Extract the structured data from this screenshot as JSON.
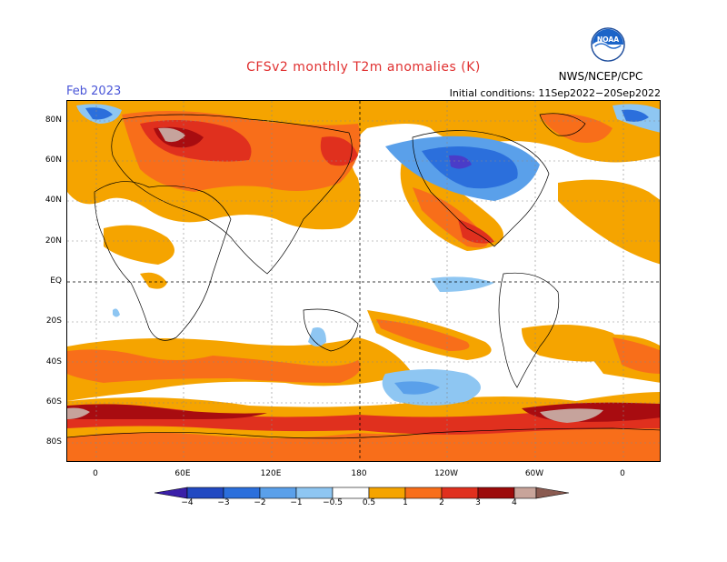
{
  "header": {
    "title": "CFSv2 monthly T2m anomalies (K)",
    "month": "Feb 2023",
    "initial_conditions": "Initial conditions: 11Sep2022−20Sep2022",
    "agency": "NWS/NCEP/CPC",
    "logo_text": "NOAA"
  },
  "axes": {
    "lat_labels": [
      "80N",
      "60N",
      "40N",
      "20N",
      "EQ",
      "20S",
      "40S",
      "60S",
      "80S"
    ],
    "lon_labels": [
      "0",
      "60E",
      "120E",
      "180",
      "120W",
      "60W",
      "0"
    ]
  },
  "colorbar": {
    "labels": [
      "−4",
      "−3",
      "−2",
      "−1",
      "−0.5",
      "0.5",
      "1",
      "2",
      "3",
      "4"
    ],
    "colors": [
      "#3a1fa8",
      "#2149c2",
      "#2b6fdc",
      "#5aa0ea",
      "#8ec6f2",
      "#ffffff",
      "#f5a400",
      "#f86e1a",
      "#e0301e",
      "#9c0a0a",
      "#c8a49a",
      "#8a5a50"
    ]
  },
  "colors": {
    "warm_light": "#f5a400",
    "warm_mid": "#f86e1a",
    "warm_strong": "#e0301e",
    "warm_darkred": "#a80c10",
    "warm_extreme": "#c6a39c",
    "cool_light": "#8ec6f2",
    "cool_mid": "#5aa0ea",
    "cool_strong": "#2b6fdc",
    "cool_extreme": "#4a3cc8"
  }
}
